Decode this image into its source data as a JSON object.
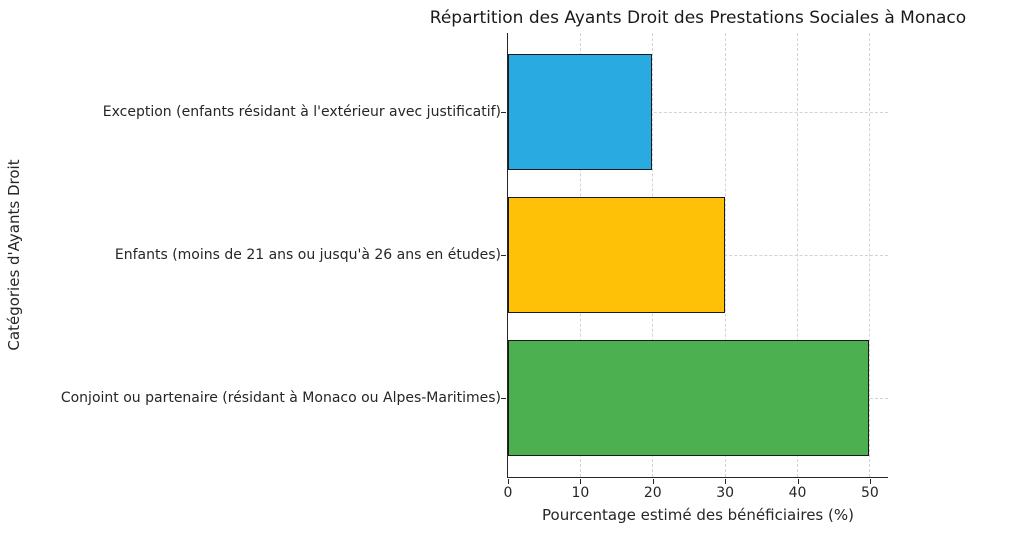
{
  "chart_data": {
    "type": "bar",
    "orientation": "horizontal",
    "title": "Répartition des Ayants Droit des Prestations Sociales à Monaco",
    "categories": [
      "Exception (enfants résidant à l'extérieur avec justificatif)",
      "Enfants (moins de 21 ans ou jusqu'à 26 ans en études)",
      "Conjoint ou partenaire (résidant à Monaco ou Alpes-Maritimes)"
    ],
    "values": [
      20,
      30,
      50
    ],
    "bar_colors": [
      "#29ABE2",
      "#FFC107",
      "#4CAF50"
    ],
    "bar_edge_color": "#1a1a1a",
    "xlabel": "Pourcentage estimé des bénéficiaires (%)",
    "ylabel": "Catégories d'Ayants Droit",
    "xlim": [
      0,
      52.5
    ],
    "xticks": [
      0,
      10,
      20,
      30,
      40,
      50
    ],
    "grid": true,
    "grid_line_style": "dashed",
    "legend": "none"
  }
}
